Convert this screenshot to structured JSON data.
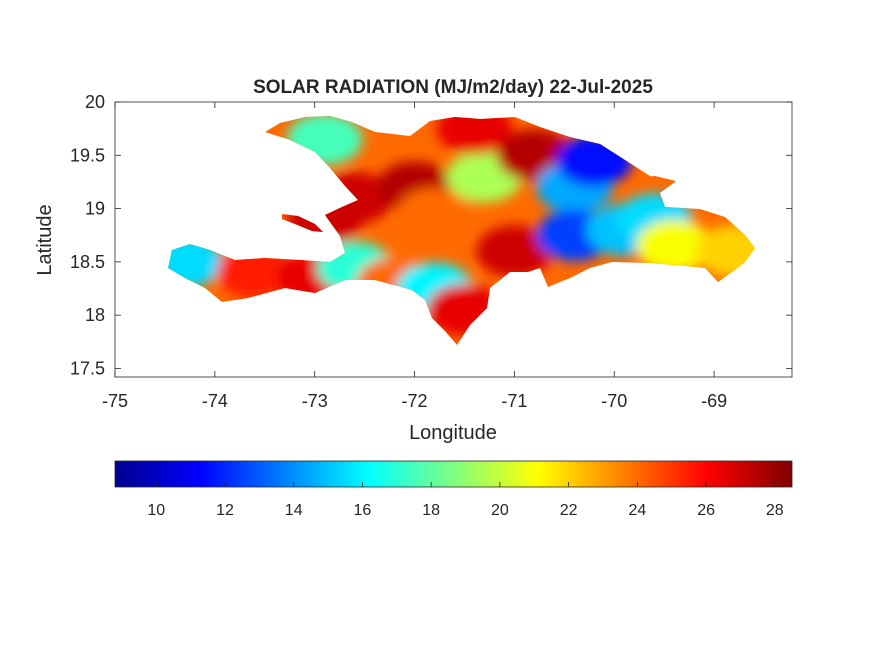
{
  "title": "SOLAR RADIATION (MJ/m2/day) 22-Jul-2025",
  "axes": {
    "xlabel": "Longitude",
    "ylabel": "Latitude",
    "xlim": [
      -75,
      -68.22
    ],
    "ylim": [
      17.42,
      20
    ],
    "xticks": [
      -75,
      -74,
      -73,
      -72,
      -71,
      -70,
      -69
    ],
    "yticks": [
      17.5,
      18,
      18.5,
      19,
      19.5,
      20
    ],
    "xtick_labels": [
      "-75",
      "-74",
      "-73",
      "-72",
      "-71",
      "-70",
      "-69"
    ],
    "ytick_labels": [
      "17.5",
      "18",
      "18.5",
      "19",
      "19.5",
      "20"
    ],
    "grid": false
  },
  "colorbar": {
    "colormap": "jet",
    "range": [
      8.8,
      28.5
    ],
    "ticks": [
      10,
      12,
      14,
      16,
      18,
      20,
      22,
      24,
      26,
      28
    ],
    "tick_labels": [
      "10",
      "12",
      "14",
      "16",
      "18",
      "20",
      "22",
      "24",
      "26",
      "28"
    ],
    "placement": "bottom",
    "stops": [
      "#00008f",
      "#0000ff",
      "#0080ff",
      "#00ffff",
      "#80ff80",
      "#ffff00",
      "#ff8000",
      "#ff0000",
      "#800000"
    ]
  },
  "chart_data": {
    "type": "heatmap",
    "title": "SOLAR RADIATION (MJ/m2/day) 22-Jul-2025",
    "xlabel": "Longitude",
    "ylabel": "Latitude",
    "xlim": [
      -75,
      -68.22
    ],
    "ylim": [
      17.42,
      20
    ],
    "value_range": [
      8.8,
      28.5
    ],
    "units": "MJ/m2/day",
    "regions": [
      {
        "lon": -74.3,
        "lat": 18.5,
        "value": 15.5
      },
      {
        "lon": -73.6,
        "lat": 18.4,
        "value": 25.5
      },
      {
        "lon": -73.0,
        "lat": 18.35,
        "value": 26.5
      },
      {
        "lon": -72.6,
        "lat": 18.45,
        "value": 17.0
      },
      {
        "lon": -72.2,
        "lat": 18.3,
        "value": 24.0
      },
      {
        "lon": -71.8,
        "lat": 18.25,
        "value": 16.0
      },
      {
        "lon": -71.5,
        "lat": 18.05,
        "value": 26.5
      },
      {
        "lon": -72.9,
        "lat": 19.65,
        "value": 17.5
      },
      {
        "lon": -72.6,
        "lat": 19.1,
        "value": 27.0
      },
      {
        "lon": -72.0,
        "lat": 19.2,
        "value": 27.5
      },
      {
        "lon": -71.8,
        "lat": 18.95,
        "value": 24.0
      },
      {
        "lon": -71.3,
        "lat": 19.3,
        "value": 19.5
      },
      {
        "lon": -71.4,
        "lat": 19.75,
        "value": 26.5
      },
      {
        "lon": -71.0,
        "lat": 18.6,
        "value": 27.0
      },
      {
        "lon": -70.8,
        "lat": 19.5,
        "value": 27.5
      },
      {
        "lon": -70.4,
        "lat": 19.2,
        "value": 14.5
      },
      {
        "lon": -70.2,
        "lat": 19.45,
        "value": 11.5
      },
      {
        "lon": -70.4,
        "lat": 18.75,
        "value": 12.5
      },
      {
        "lon": -69.9,
        "lat": 18.8,
        "value": 15.0
      },
      {
        "lon": -69.6,
        "lat": 18.9,
        "value": 15.5
      },
      {
        "lon": -69.4,
        "lat": 18.65,
        "value": 21.0
      },
      {
        "lon": -68.8,
        "lat": 18.6,
        "value": 22.0
      },
      {
        "lon": -72.9,
        "lat": 18.9,
        "value": 27.0
      }
    ]
  }
}
